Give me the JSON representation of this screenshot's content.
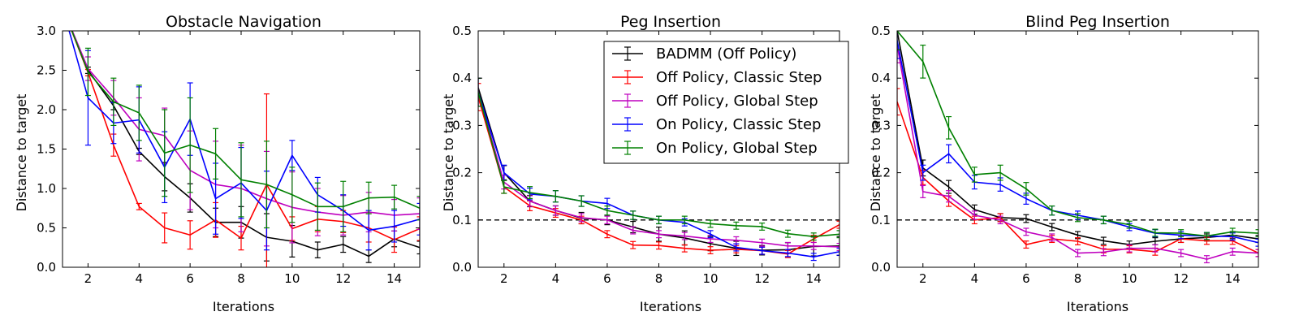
{
  "charts": [
    {
      "title": "Obstacle Navigation",
      "xlabel": "Iterations",
      "ylabel": "Distance to target",
      "xlim": [
        1,
        15
      ],
      "ylim": [
        0,
        3.0
      ],
      "xticks": [
        2,
        4,
        6,
        8,
        10,
        12,
        14
      ],
      "yticks": [
        "0.0",
        "0.5",
        "1.0",
        "1.5",
        "2.0",
        "2.5",
        "3.0"
      ],
      "ytick_values": [
        0,
        0.5,
        1.0,
        1.5,
        2.0,
        2.5,
        3.0
      ],
      "threshold": null
    },
    {
      "title": "Peg Insertion",
      "xlabel": "Iterations",
      "ylabel": "Distance to target",
      "xlim": [
        1,
        15
      ],
      "ylim": [
        0,
        0.5
      ],
      "xticks": [
        2,
        4,
        6,
        8,
        10,
        12,
        14
      ],
      "yticks": [
        "0.0",
        "0.1",
        "0.2",
        "0.3",
        "0.4",
        "0.5"
      ],
      "ytick_values": [
        0,
        0.1,
        0.2,
        0.3,
        0.4,
        0.5
      ],
      "threshold": 0.1
    },
    {
      "title": "Blind Peg Insertion",
      "xlabel": "Iterations",
      "ylabel": "Distance to target",
      "xlim": [
        1,
        15
      ],
      "ylim": [
        0,
        0.5
      ],
      "xticks": [
        2,
        4,
        6,
        8,
        10,
        12,
        14
      ],
      "yticks": [
        "0.0",
        "0.1",
        "0.2",
        "0.3",
        "0.4",
        "0.5"
      ],
      "ytick_values": [
        0,
        0.1,
        0.2,
        0.3,
        0.4,
        0.5
      ],
      "threshold": 0.1
    }
  ],
  "legend": {
    "placement": "upper-right of middle panel",
    "entries": [
      {
        "label": "BADMM (Off Policy)",
        "color": "#000000"
      },
      {
        "label": "Off Policy, Classic Step",
        "color": "#ff0000"
      },
      {
        "label": "Off Policy, Global Step",
        "color": "#bf00bf"
      },
      {
        "label": "On Policy, Classic Step",
        "color": "#0000ff"
      },
      {
        "label": "On Policy, Global Step",
        "color": "#008000"
      }
    ]
  },
  "chart_data": [
    {
      "type": "line",
      "title": "Obstacle Navigation",
      "xlabel": "Iterations",
      "ylabel": "Distance to target",
      "x": [
        1,
        2,
        3,
        4,
        5,
        6,
        7,
        8,
        9,
        10,
        11,
        12,
        13,
        14,
        15
      ],
      "ylim": [
        0,
        3.0
      ],
      "series": [
        {
          "name": "BADMM (Off Policy)",
          "color": "#000000",
          "values": [
            3.3,
            2.5,
            2.05,
            1.47,
            1.15,
            0.88,
            0.57,
            0.57,
            0.38,
            0.33,
            0.22,
            0.29,
            0.14,
            0.36,
            0.25
          ],
          "err": [
            0.05,
            0.04,
            0.05,
            0.04,
            0.18,
            0.18,
            0.18,
            0.2,
            0.3,
            0.2,
            0.1,
            0.1,
            0.08,
            0.1,
            0.08
          ]
        },
        {
          "name": "Off Policy, Classic Step",
          "color": "#ff0000",
          "values": [
            3.3,
            2.47,
            1.55,
            0.77,
            0.5,
            0.41,
            0.6,
            0.37,
            1.05,
            0.49,
            0.61,
            0.58,
            0.5,
            0.35,
            0.49
          ],
          "err": [
            0.05,
            0.04,
            0.14,
            0.04,
            0.19,
            0.18,
            0.22,
            0.15,
            1.15,
            0.15,
            0.16,
            0.14,
            0.18,
            0.16,
            0.15
          ]
        },
        {
          "name": "Off Policy, Global Step",
          "color": "#bf00bf",
          "values": [
            3.3,
            2.52,
            2.15,
            1.75,
            1.67,
            1.23,
            1.05,
            1.0,
            0.87,
            0.76,
            0.7,
            0.66,
            0.7,
            0.66,
            0.68
          ],
          "err": [
            0.05,
            0.15,
            0.22,
            0.4,
            0.35,
            0.5,
            0.55,
            0.55,
            0.6,
            0.45,
            0.3,
            0.25,
            0.25,
            0.2,
            0.2
          ]
        },
        {
          "name": "On Policy, Classic Step",
          "color": "#0000ff",
          "values": [
            3.3,
            2.15,
            1.83,
            1.87,
            1.27,
            1.88,
            0.87,
            1.07,
            0.72,
            1.42,
            0.92,
            0.72,
            0.47,
            0.52,
            0.61
          ],
          "err": [
            0.05,
            0.6,
            0.26,
            0.42,
            0.45,
            0.46,
            0.45,
            0.45,
            0.5,
            0.19,
            0.22,
            0.2,
            0.25,
            0.2,
            0.2
          ]
        },
        {
          "name": "On Policy, Global Step",
          "color": "#008000",
          "values": [
            3.3,
            2.48,
            2.1,
            1.96,
            1.45,
            1.55,
            1.44,
            1.11,
            1.05,
            0.92,
            0.77,
            0.77,
            0.88,
            0.89,
            0.75
          ],
          "err": [
            0.05,
            0.3,
            0.3,
            0.35,
            0.55,
            0.6,
            0.32,
            0.47,
            0.55,
            0.35,
            0.3,
            0.32,
            0.2,
            0.15,
            0.15
          ]
        }
      ]
    },
    {
      "type": "line",
      "title": "Peg Insertion",
      "xlabel": "Iterations",
      "ylabel": "Distance to target",
      "x": [
        1,
        2,
        3,
        4,
        5,
        6,
        7,
        8,
        9,
        10,
        11,
        12,
        13,
        14,
        15
      ],
      "ylim": [
        0,
        0.5
      ],
      "threshold": 0.1,
      "series": [
        {
          "name": "BADMM (Off Policy)",
          "color": "#000000",
          "values": [
            0.38,
            0.2,
            0.14,
            0.12,
            0.104,
            0.1,
            0.085,
            0.07,
            0.062,
            0.05,
            0.04,
            0.036,
            0.037,
            0.044,
            0.045
          ],
          "err": [
            0.02,
            0.015,
            0.012,
            0.01,
            0.012,
            0.01,
            0.012,
            0.015,
            0.015,
            0.015,
            0.015,
            0.01,
            0.015,
            0.02,
            0.02
          ]
        },
        {
          "name": "Off Policy, Classic Step",
          "color": "#ff0000",
          "values": [
            0.36,
            0.17,
            0.13,
            0.115,
            0.1,
            0.07,
            0.047,
            0.046,
            0.04,
            0.036,
            0.038,
            0.035,
            0.028,
            0.06,
            0.09
          ]
        },
        {
          "name": "Off Policy, Global Step",
          "color": "#bf00bf",
          "values": [
            0.37,
            0.18,
            0.14,
            0.12,
            0.105,
            0.1,
            0.078,
            0.07,
            0.066,
            0.06,
            0.057,
            0.052,
            0.045,
            0.045,
            0.043
          ]
        },
        {
          "name": "On Policy, Classic Step",
          "color": "#0000ff",
          "values": [
            0.37,
            0.2,
            0.155,
            0.15,
            0.14,
            0.135,
            0.11,
            0.1,
            0.095,
            0.07,
            0.042,
            0.035,
            0.03,
            0.022,
            0.033
          ]
        },
        {
          "name": "On Policy, Global Step",
          "color": "#008000",
          "values": [
            0.37,
            0.17,
            0.158,
            0.15,
            0.14,
            0.12,
            0.11,
            0.1,
            0.1,
            0.092,
            0.088,
            0.086,
            0.071,
            0.065,
            0.07
          ]
        }
      ]
    },
    {
      "type": "line",
      "title": "Blind Peg Insertion",
      "xlabel": "Iterations",
      "ylabel": "Distance to target",
      "x": [
        1,
        2,
        3,
        4,
        5,
        6,
        7,
        8,
        9,
        10,
        11,
        12,
        13,
        14,
        15
      ],
      "ylim": [
        0,
        0.5
      ],
      "threshold": 0.1,
      "series": [
        {
          "name": "BADMM (Off Policy)",
          "color": "#000000",
          "values": [
            0.5,
            0.21,
            0.17,
            0.122,
            0.105,
            0.103,
            0.085,
            0.068,
            0.056,
            0.048,
            0.055,
            0.06,
            0.063,
            0.068,
            0.06
          ]
        },
        {
          "name": "Off Policy, Classic Step",
          "color": "#ff0000",
          "values": [
            0.35,
            0.19,
            0.14,
            0.1,
            0.105,
            0.048,
            0.06,
            0.055,
            0.038,
            0.038,
            0.033,
            0.06,
            0.056,
            0.056,
            0.03
          ]
        },
        {
          "name": "Off Policy, Global Step",
          "color": "#bf00bf",
          "values": [
            0.47,
            0.16,
            0.15,
            0.11,
            0.1,
            0.075,
            0.063,
            0.03,
            0.032,
            0.04,
            0.04,
            0.03,
            0.017,
            0.033,
            0.03
          ]
        },
        {
          "name": "On Policy, Classic Step",
          "color": "#0000ff",
          "values": [
            0.48,
            0.2,
            0.24,
            0.18,
            0.175,
            0.145,
            0.12,
            0.11,
            0.1,
            0.085,
            0.072,
            0.068,
            0.066,
            0.065,
            0.052
          ]
        },
        {
          "name": "On Policy, Global Step",
          "color": "#008000",
          "values": [
            0.5,
            0.435,
            0.295,
            0.196,
            0.2,
            0.166,
            0.12,
            0.105,
            0.1,
            0.09,
            0.073,
            0.072,
            0.066,
            0.075,
            0.072
          ]
        }
      ]
    }
  ]
}
